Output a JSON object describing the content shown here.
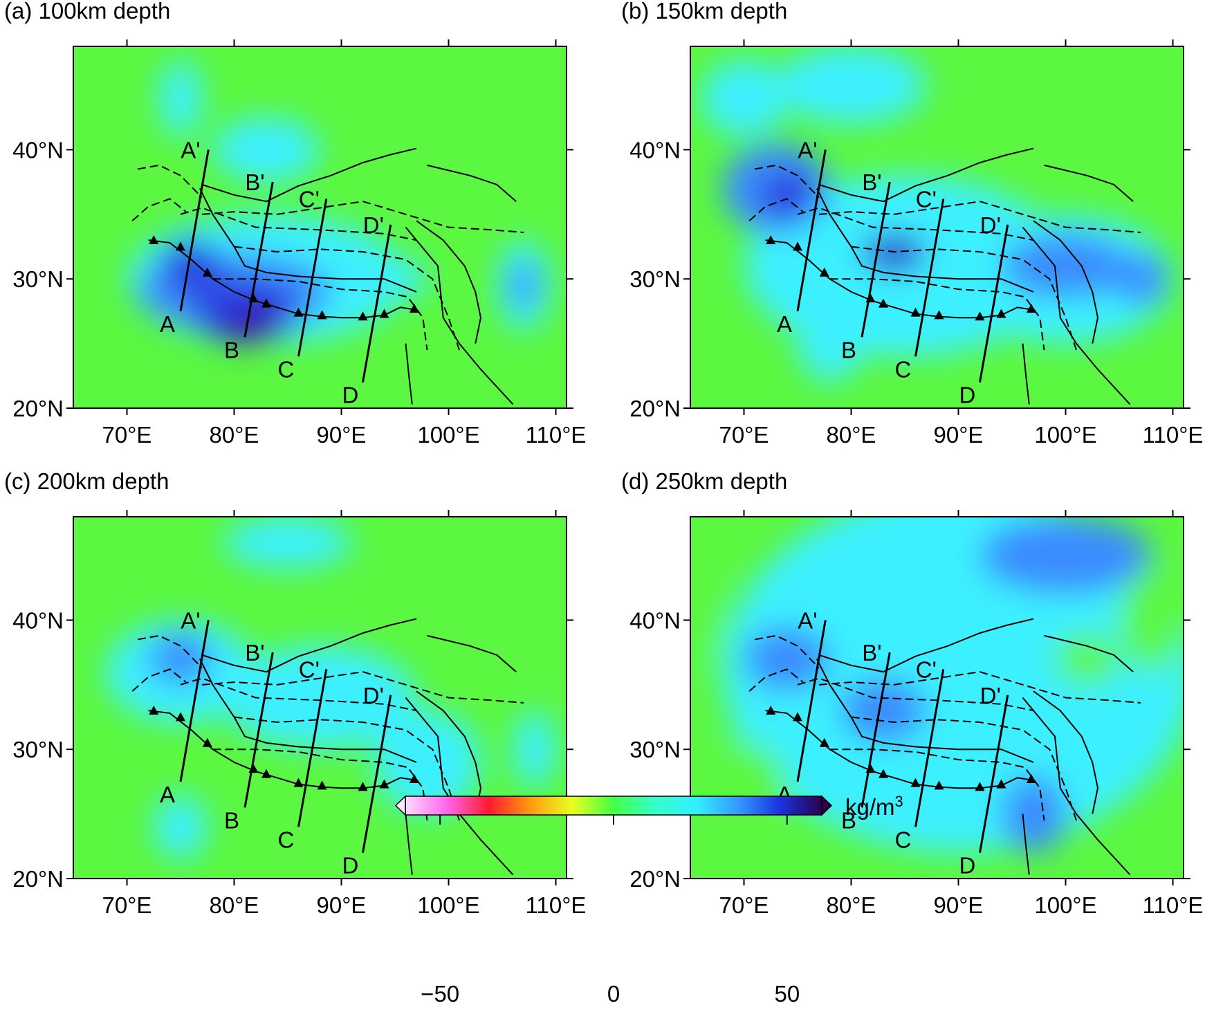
{
  "panels": [
    {
      "title": "(a) 100km depth"
    },
    {
      "title": "(b) 150km depth"
    },
    {
      "title": "(c) 200km depth"
    },
    {
      "title": "(d) 250km depth"
    }
  ],
  "axes": {
    "xlim": [
      65,
      111
    ],
    "ylim": [
      20,
      48
    ],
    "xticks": [
      {
        "value": 70,
        "label": "70°E"
      },
      {
        "value": 80,
        "label": "80°E"
      },
      {
        "value": 90,
        "label": "90°E"
      },
      {
        "value": 100,
        "label": "100°E"
      },
      {
        "value": 110,
        "label": "110°E"
      }
    ],
    "yticks": [
      {
        "value": 20,
        "label": "20°N"
      },
      {
        "value": 30,
        "label": "30°N"
      },
      {
        "value": 40,
        "label": "40°N"
      }
    ]
  },
  "profiles": [
    {
      "start": "A",
      "end": "A'"
    },
    {
      "start": "B",
      "end": "B'"
    },
    {
      "start": "C",
      "end": "C'"
    },
    {
      "start": "D",
      "end": "D'"
    }
  ],
  "colorbar": {
    "lim": [
      -60,
      60
    ],
    "ticks": [
      {
        "value": -50,
        "label": "−50"
      },
      {
        "value": 0,
        "label": "0"
      },
      {
        "value": 50,
        "label": "50"
      }
    ],
    "unit": "kg/m",
    "unit_sup": "3"
  }
}
